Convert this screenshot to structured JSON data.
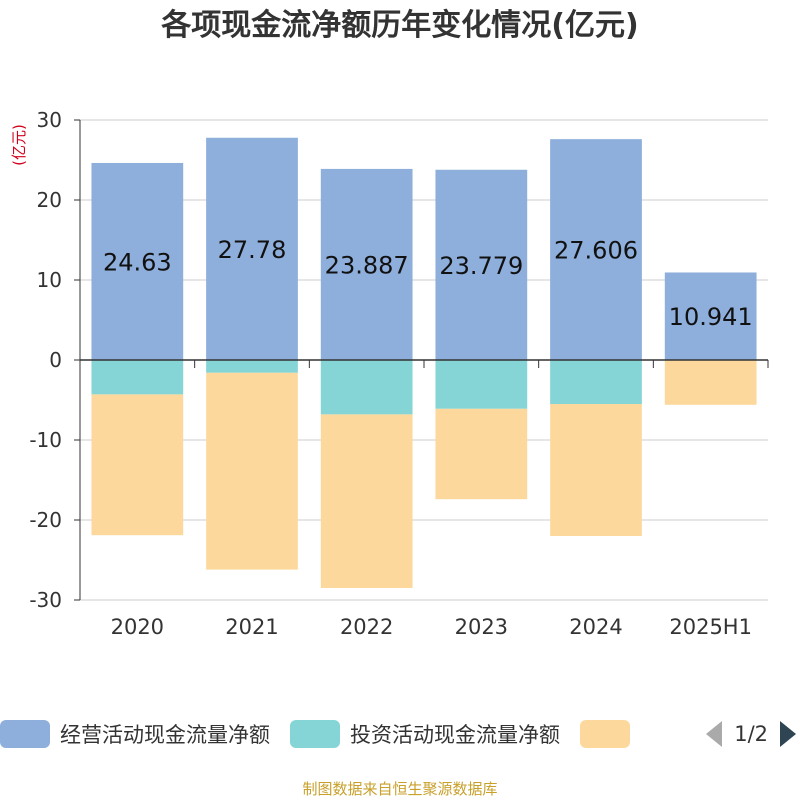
{
  "title": "各项现金流净额历年变化情况(亿元)",
  "unit_label": "(亿元)",
  "source_note": "制图数据来自恒生聚源数据库",
  "legend_pager": "1/2",
  "chart_data": {
    "type": "bar",
    "stacked": true,
    "categories": [
      "2020",
      "2021",
      "2022",
      "2023",
      "2024",
      "2025H1"
    ],
    "ylim": [
      -30,
      30
    ],
    "yticks": [
      30,
      20,
      10,
      0,
      -10,
      -20,
      -30
    ],
    "ylabel": "(亿元)",
    "grid": true,
    "legend_position": "bottom",
    "series": [
      {
        "name": "经营活动现金流量净额",
        "color": "#8eaedb",
        "values": [
          24.63,
          27.78,
          23.887,
          23.779,
          27.606,
          10.941
        ]
      },
      {
        "name": "投资活动现金流量净额",
        "color": "#86d5d6",
        "values": [
          -4.3,
          -1.6,
          -6.8,
          -6.1,
          -5.5,
          0
        ]
      },
      {
        "name": "",
        "color": "#fdd89c",
        "values": [
          -17.6,
          -24.6,
          -21.7,
          -11.3,
          -16.5,
          -5.6
        ]
      }
    ],
    "data_labels": [
      "24.63",
      "27.78",
      "23.887",
      "23.779",
      "27.606",
      "10.941"
    ]
  }
}
